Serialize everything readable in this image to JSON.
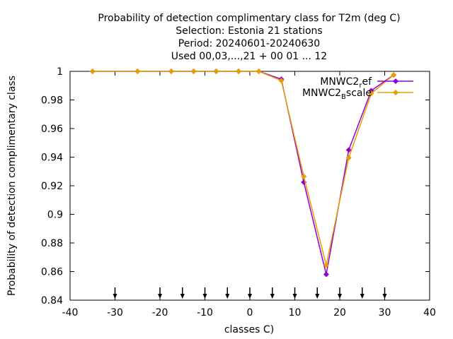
{
  "chart_data": {
    "type": "line",
    "title_lines": [
      "Probability of detection complimentary class  for T2m (deg C)",
      "Selection: Estonia     21 stations",
      "Period: 20240601-20240630",
      "Used 00,03,...,21 + 00 01 ... 12"
    ],
    "xlabel": "classes C)",
    "ylabel": "Probability of detection complimentary class",
    "xlim": [
      -40,
      40
    ],
    "ylim": [
      0.84,
      1.0
    ],
    "x_ticks": [
      -40,
      -30,
      -20,
      -10,
      0,
      10,
      20,
      30,
      40
    ],
    "y_ticks": [
      0.84,
      0.86,
      0.88,
      0.9,
      0.92,
      0.94,
      0.96,
      0.98,
      1
    ],
    "y_tick_labels": [
      "0.84",
      "0.86",
      "0.88",
      "0.9",
      "0.92",
      "0.94",
      "0.96",
      "0.98",
      "1"
    ],
    "legend_position": "top-right",
    "series": [
      {
        "name": "MNWC2_ref",
        "legend_main": "MNWC2",
        "legend_sub": "r",
        "legend_tail": "ef",
        "color": "#9400d3",
        "x": [
          -35,
          -25,
          -17.5,
          -12.5,
          -7.5,
          -2.5,
          2,
          7,
          12,
          17,
          22,
          27,
          32
        ],
        "y": [
          1.0,
          1.0,
          1.0,
          1.0,
          1.0,
          1.0,
          1.0,
          0.9945,
          0.9225,
          0.858,
          0.945,
          0.9865,
          0.9975
        ]
      },
      {
        "name": "MNWC2_Bscale",
        "legend_main": "MNWC2",
        "legend_sub": "B",
        "legend_tail": "scale",
        "color": "#e69f00",
        "x": [
          -35,
          -25,
          -17.5,
          -12.5,
          -7.5,
          -2.5,
          2,
          7,
          12,
          17,
          22,
          27,
          32
        ],
        "y": [
          1.0,
          1.0,
          1.0,
          1.0,
          1.0,
          1.0,
          1.0,
          0.9935,
          0.9265,
          0.8645,
          0.9395,
          0.9845,
          0.9975
        ]
      }
    ],
    "arrow_markers_x": [
      -30,
      -20,
      -15,
      -10,
      -5,
      0,
      5,
      10,
      15,
      20,
      25,
      30
    ]
  }
}
